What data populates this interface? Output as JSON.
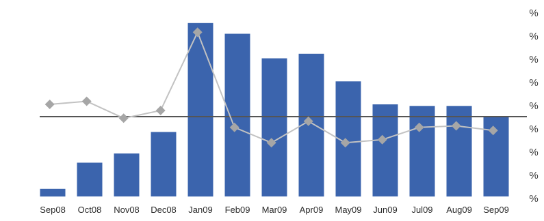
{
  "chart_data": {
    "type": "bar",
    "title": "",
    "xlabel": "",
    "ylabel": "",
    "categories": [
      "Sep08",
      "Oct08",
      "Nov08",
      "Dec08",
      "Jan09",
      "Feb09",
      "Mar09",
      "Apr09",
      "May09",
      "Jun09",
      "Jul09",
      "Aug09",
      "Sep09"
    ],
    "series": [
      {
        "type": "bar",
        "color": "#3b64ad",
        "values": [
          5,
          22,
          28,
          42,
          113,
          106,
          90,
          93,
          75,
          60,
          59,
          59,
          52
        ],
        "data_labels": [
          "",
          "",
          "",
          "",
          "",
          "",
          "",
          "",
          "",
          "",
          "",
          "",
          ""
        ]
      },
      {
        "type": "line",
        "color": "#c2c2c2",
        "marker_color": "#a6a6a6",
        "values": [
          60,
          62,
          51,
          56,
          107,
          45,
          35,
          49,
          35,
          37,
          45,
          46,
          43
        ]
      }
    ],
    "ylim": [
      0,
      120
    ],
    "y_right_ticks": [
      "%",
      "%",
      "%",
      "%",
      "%",
      "%",
      "%",
      "%",
      "%"
    ],
    "reference_line": {
      "value": 52,
      "color": "#555555"
    },
    "legend": "none",
    "grid": false
  }
}
